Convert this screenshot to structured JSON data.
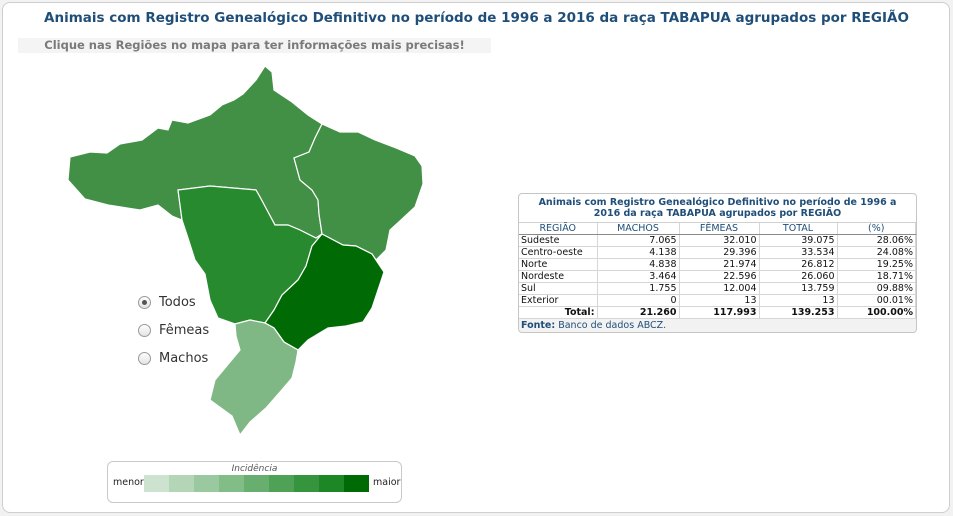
{
  "title": "Animais com Registro Genealógico Definitivo no período de 1996 a 2016 da raça TABAPUA agrupados por REGIÃO",
  "hint": "Clique nas Regiões no mapa para ter informações mais precisas!",
  "map": {
    "regions": [
      {
        "name": "Norte",
        "color": "#419045"
      },
      {
        "name": "Nordeste",
        "color": "#419045"
      },
      {
        "name": "Centro-oeste",
        "color": "#288a2f"
      },
      {
        "name": "Sudeste",
        "color": "#006b05"
      },
      {
        "name": "Sul",
        "color": "#7fb884"
      }
    ]
  },
  "filters": [
    {
      "label": "Todos",
      "selected": true
    },
    {
      "label": "Fêmeas",
      "selected": false
    },
    {
      "label": "Machos",
      "selected": false
    }
  ],
  "legend": {
    "title": "Incidência",
    "min_label": "menor",
    "max_label": "maior",
    "colors": [
      "#cde3cf",
      "#b4d6b7",
      "#9bc99f",
      "#82bc87",
      "#68ae6e",
      "#4fa156",
      "#36943e",
      "#1d8726",
      "#006b05"
    ]
  },
  "table": {
    "title": "Animais com Registro Genealógico Definitivo no período de 1996 a 2016 da raça TABAPUA agrupados por REGIÃO",
    "headers": [
      "REGIÃO",
      "MACHOS",
      "FÊMEAS",
      "TOTAL",
      "(%)"
    ],
    "rows": [
      [
        "Sudeste",
        "7.065",
        "32.010",
        "39.075",
        "28.06%"
      ],
      [
        "Centro-oeste",
        "4.138",
        "29.396",
        "33.534",
        "24.08%"
      ],
      [
        "Norte",
        "4.838",
        "21.974",
        "26.812",
        "19.25%"
      ],
      [
        "Nordeste",
        "3.464",
        "22.596",
        "26.060",
        "18.71%"
      ],
      [
        "Sul",
        "1.755",
        "12.004",
        "13.759",
        "09.88%"
      ],
      [
        "Exterior",
        "0",
        "13",
        "13",
        "00.01%"
      ]
    ],
    "total": [
      "Total:",
      "21.260",
      "117.993",
      "139.253",
      "100.00%"
    ],
    "source_label": "Fonte:",
    "source_text": "Banco de dados ABCZ."
  }
}
